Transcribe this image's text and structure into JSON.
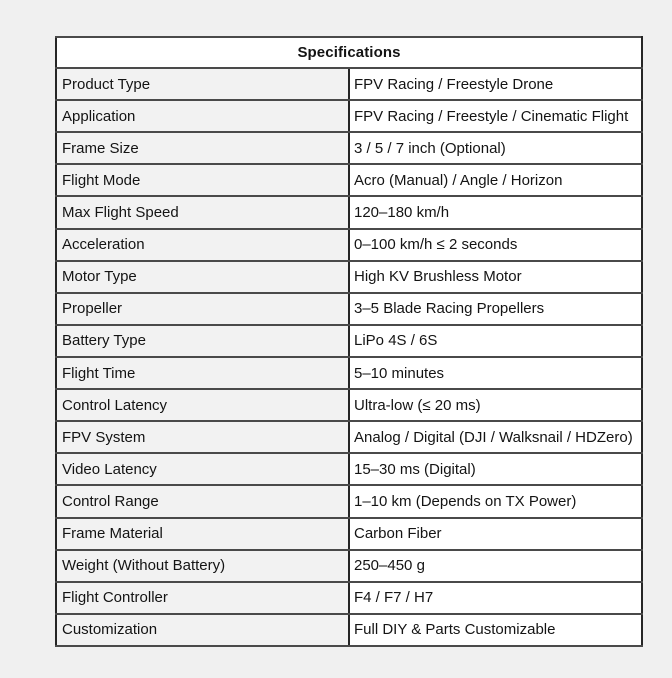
{
  "colors": {
    "page_bg": "#f0f0f0",
    "header_bg": "#ffffff",
    "label_cell_bg": "#f2f2f2",
    "value_cell_bg": "#ffffff",
    "border_dark": "#262626",
    "row_line": "#4a4a4a",
    "text": "#141414"
  },
  "table": {
    "title": "Specifications",
    "rows": [
      {
        "label": "Product Type",
        "value": "FPV Racing / Freestyle Drone"
      },
      {
        "label": "Application",
        "value": "FPV Racing / Freestyle / Cinematic Flight"
      },
      {
        "label": "Frame Size",
        "value": "3 / 5 / 7 inch (Optional)"
      },
      {
        "label": "Flight Mode",
        "value": "Acro (Manual) / Angle / Horizon"
      },
      {
        "label": "Max Flight Speed",
        "value": "120–180 km/h"
      },
      {
        "label": "Acceleration",
        "value": "0–100 km/h ≤ 2 seconds"
      },
      {
        "label": "Motor Type",
        "value": "High KV Brushless Motor"
      },
      {
        "label": "Propeller",
        "value": "3–5 Blade Racing Propellers"
      },
      {
        "label": "Battery Type",
        "value": "LiPo 4S / 6S"
      },
      {
        "label": "Flight Time",
        "value": "5–10 minutes"
      },
      {
        "label": "Control Latency",
        "value": "Ultra-low (≤ 20 ms)"
      },
      {
        "label": "FPV System",
        "value": "Analog / Digital (DJI / Walksnail / HDZero)"
      },
      {
        "label": "Video Latency",
        "value": "15–30 ms (Digital)"
      },
      {
        "label": "Control Range",
        "value": "1–10 km (Depends on TX Power)"
      },
      {
        "label": "Frame Material",
        "value": "Carbon Fiber"
      },
      {
        "label": "Weight (Without Battery)",
        "value": "250–450 g"
      },
      {
        "label": "Flight Controller",
        "value": "F4 / F7 / H7"
      },
      {
        "label": "Customization",
        "value": "Full DIY & Parts Customizable"
      }
    ]
  }
}
